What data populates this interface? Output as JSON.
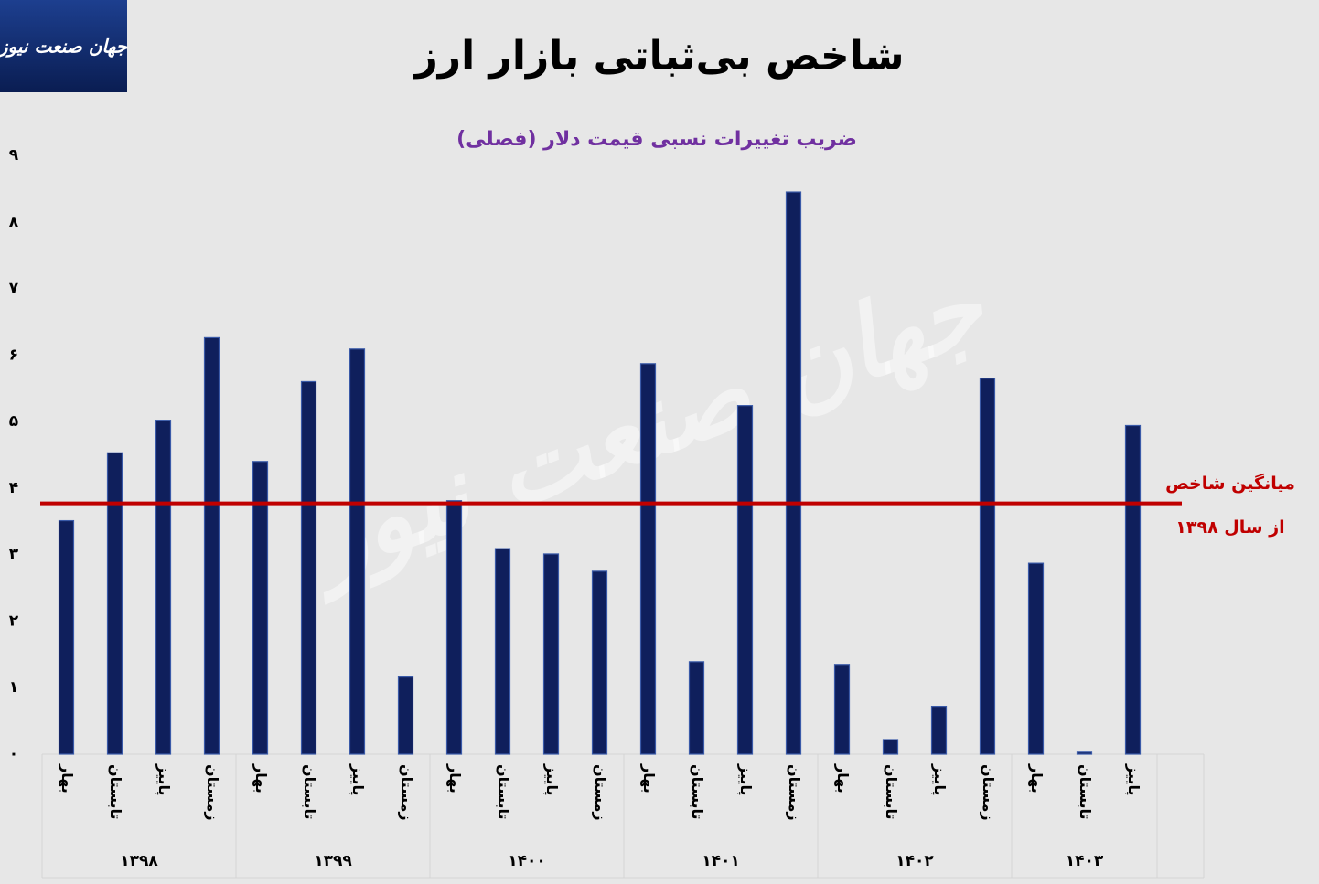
{
  "logo": "جهان صنعت نیوز",
  "chart_data": {
    "type": "bar",
    "title": "شاخص بی‌ثباتی بازار ارز",
    "subtitle": "ضریب تغییرات نسبی قیمت دلار (فصلی)",
    "color": "#0f1f5c",
    "groups": [
      {
        "label": "۱۳۹۸",
        "categories": [
          "بهار",
          "تابستان",
          "پاییز",
          "زمستان"
        ],
        "values": [
          3.51,
          4.53,
          5.02,
          6.26
        ]
      },
      {
        "label": "۱۳۹۹",
        "categories": [
          "بهار",
          "تابستان",
          "پاییز",
          "زمستان"
        ],
        "values": [
          4.4,
          5.6,
          6.09,
          1.16
        ]
      },
      {
        "label": "۱۴۰۰",
        "categories": [
          "بهار",
          "تابستان",
          "پاییز",
          "زمستان"
        ],
        "values": [
          3.81,
          3.09,
          3.01,
          2.75
        ]
      },
      {
        "label": "۱۴۰۱",
        "categories": [
          "بهار",
          "تابستان",
          "پاییز",
          "زمستان"
        ],
        "values": [
          5.87,
          1.39,
          5.24,
          8.45
        ]
      },
      {
        "label": "۱۴۰۲",
        "categories": [
          "بهار",
          "تابستان",
          "پاییز",
          "زمستان"
        ],
        "values": [
          1.35,
          0.22,
          0.72,
          5.65
        ]
      },
      {
        "label": "۱۴۰۳",
        "categories": [
          "بهار",
          "تابستان",
          "پاییز"
        ],
        "values": [
          2.87,
          0.03,
          4.94
        ]
      }
    ],
    "ylim": [
      0,
      9
    ],
    "yticks": [
      {
        "value": 0,
        "label": "۰"
      },
      {
        "value": 1,
        "label": "۱"
      },
      {
        "value": 2,
        "label": "۲"
      },
      {
        "value": 3,
        "label": "۳"
      },
      {
        "value": 4,
        "label": "۴"
      },
      {
        "value": 5,
        "label": "۵"
      },
      {
        "value": 6,
        "label": "۶"
      },
      {
        "value": 7,
        "label": "۷"
      },
      {
        "value": 8,
        "label": "۸"
      },
      {
        "value": 9,
        "label": "۹"
      }
    ],
    "reference_line": {
      "value": 3.77,
      "color": "#c00000",
      "label_lines": [
        "میانگین شاخص",
        "از سال ۱۳۹۸"
      ]
    }
  }
}
